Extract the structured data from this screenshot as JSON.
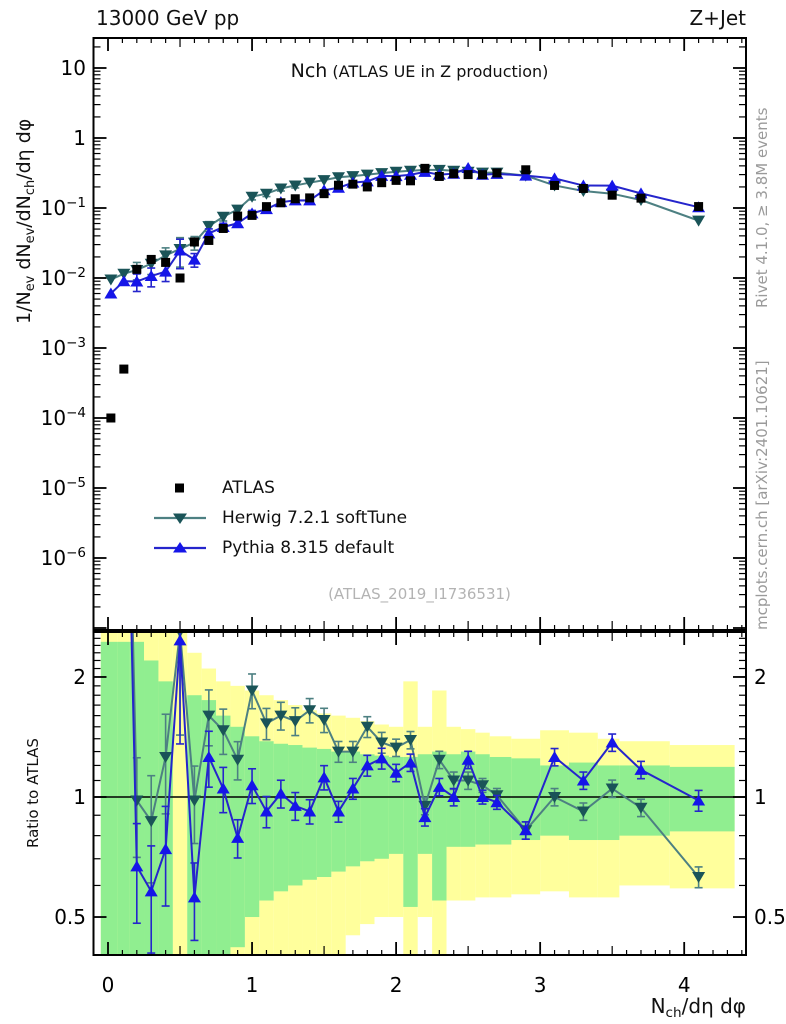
{
  "header": {
    "left": "13000 GeV pp",
    "right": "Z+Jet"
  },
  "title": {
    "main": "Nch",
    "paren": "(ATLAS UE in Z production)"
  },
  "watermark": "(ATLAS_2019_I1736531)",
  "side_notes": {
    "top": "Rivet 4.1.0, ≥ 3.8M events",
    "bottom": "mcplots.cern.ch [arXiv:2401.10621]"
  },
  "axes": {
    "ratio_label": "Ratio to ATLAS",
    "x_label_parts": [
      {
        "t": "N"
      },
      {
        "s": "ch"
      },
      {
        "t": "/dη dφ"
      }
    ],
    "y_label_parts": [
      {
        "t": "1/N"
      },
      {
        "s": "ev"
      },
      {
        "t": " dN"
      },
      {
        "s": "ev"
      },
      {
        "t": "/dN"
      },
      {
        "s": "ch"
      },
      {
        "t": "/dη dφ"
      }
    ],
    "x_tick_labels": [
      "0",
      "1",
      "2",
      "3",
      "4"
    ],
    "y_tick_exponents": [
      1,
      0,
      -1,
      -2,
      -3,
      -4,
      -5,
      -6
    ],
    "ratio_tick_labels": [
      "2",
      "1",
      "0.5"
    ],
    "ratio_tick_values": [
      2,
      1,
      0.5
    ]
  },
  "legend": [
    {
      "label": "ATLAS",
      "marker": "square",
      "line_color": "none",
      "marker_color": "#000000"
    },
    {
      "label": "Herwig 7.2.1 softTune",
      "marker": "triangle-down",
      "line_color": "#4d8082",
      "marker_color": "#1a5458"
    },
    {
      "label": "Pythia 8.315 default",
      "marker": "triangle-up",
      "line_color": "#2525cc",
      "marker_color": "#1515e8"
    }
  ],
  "colors": {
    "frame": "#000000",
    "atlas": "#000000",
    "herwig_line": "#4d8082",
    "herwig_marker": "#1a5458",
    "pythia_line": "#2525cc",
    "pythia_marker": "#1515e8",
    "band_yellow": "#ffff9c",
    "band_green": "#90ee90",
    "gray_text": "#9a9a9a"
  },
  "chart_data": {
    "type": "line",
    "title": "Nch (ATLAS UE in Z production)",
    "xlabel": "N_ch/deta dphi",
    "ylabel": "1/N_ev dN_ev/dN_ch/deta dphi",
    "ratio_ylabel": "Ratio to ATLAS",
    "main_axis": {
      "log_y": true,
      "ylim": [
        1e-07,
        27
      ],
      "labeled_decades": [
        1,
        0,
        -1,
        -2,
        -3,
        -4,
        -5,
        -6
      ]
    },
    "ratio_axis": {
      "log_y": true,
      "ylim": [
        0.4,
        2.59
      ],
      "ticks": [
        0.5,
        1,
        2
      ]
    },
    "xlim": [
      -0.104,
      4.43
    ],
    "xticks": [
      0,
      1,
      2,
      3,
      4
    ],
    "x": [
      0.02,
      0.11,
      0.2,
      0.3,
      0.4,
      0.5,
      0.6,
      0.7,
      0.8,
      0.9,
      1.0,
      1.1,
      1.2,
      1.3,
      1.4,
      1.5,
      1.6,
      1.7,
      1.8,
      1.9,
      2.0,
      2.1,
      2.2,
      2.3,
      2.4,
      2.5,
      2.6,
      2.7,
      2.9,
      3.1,
      3.3,
      3.5,
      3.7,
      4.1
    ],
    "bin_edges": [
      -0.05,
      0.065,
      0.15,
      0.25,
      0.35,
      0.45,
      0.55,
      0.65,
      0.75,
      0.85,
      0.95,
      1.05,
      1.15,
      1.25,
      1.35,
      1.45,
      1.55,
      1.65,
      1.75,
      1.85,
      1.95,
      2.05,
      2.15,
      2.25,
      2.35,
      2.45,
      2.55,
      2.65,
      2.8,
      3.0,
      3.2,
      3.4,
      3.55,
      3.9,
      4.35
    ],
    "series": [
      {
        "name": "ATLAS",
        "values": [
          0.0001,
          0.0005,
          0.0133,
          0.0184,
          0.0167,
          0.01,
          0.0327,
          0.0344,
          0.051,
          0.0766,
          0.0784,
          0.1046,
          0.1188,
          0.1355,
          0.1394,
          0.1603,
          0.2115,
          0.2192,
          0.2,
          0.2299,
          0.2481,
          0.2446,
          0.3684,
          0.2823,
          0.3091,
          0.3,
          0.2991,
          0.3168,
          0.3515,
          0.21,
          0.1902,
          0.1524,
          0.1383,
          0.1048
        ]
      },
      {
        "name": "Herwig 7.2.1 softTune",
        "ratio_to_atlas": [
          95,
          23,
          0.98,
          0.87,
          1.26,
          2.6,
          0.98,
          1.6,
          1.47,
          1.24,
          1.85,
          1.53,
          1.6,
          1.55,
          1.65,
          1.56,
          1.3,
          1.3,
          1.5,
          1.37,
          1.33,
          1.39,
          0.95,
          1.24,
          1.1,
          1.1,
          1.07,
          1.01,
          0.825,
          1.0,
          0.92,
          1.05,
          0.94,
          0.63
        ]
      },
      {
        "name": "Pythia 8.315 default",
        "ratio_to_atlas": [
          60,
          18,
          0.67,
          0.58,
          0.74,
          2.47,
          0.56,
          1.26,
          1.05,
          0.79,
          1.07,
          0.92,
          1.02,
          0.95,
          0.92,
          1.12,
          0.92,
          1.05,
          1.2,
          1.25,
          1.15,
          1.22,
          0.89,
          1.06,
          1.0,
          1.24,
          1.0,
          0.97,
          0.825,
          1.26,
          1.1,
          1.37,
          1.17,
          0.98
        ]
      }
    ],
    "mc_err_frac": [
      0,
      0,
      0.28,
      0.3,
      0.28,
      0.45,
      0.22,
      0.16,
      0.13,
      0.11,
      0.1,
      0.09,
      0.08,
      0.08,
      0.07,
      0.07,
      0.06,
      0.06,
      0.06,
      0.06,
      0.05,
      0.05,
      0.05,
      0.05,
      0.05,
      0.05,
      0.04,
      0.04,
      0.05,
      0.05,
      0.05,
      0.05,
      0.05,
      0.06
    ],
    "bands": {
      "legend_note": "yellow = data total uncertainty, green = data stat uncertainty (ratio panel)",
      "yellow": [
        [
          0.4,
          2.6
        ],
        [
          0.4,
          2.6
        ],
        [
          0.4,
          2.6
        ],
        [
          0.4,
          2.6
        ],
        [
          0.4,
          2.6
        ],
        [
          0.4,
          2.6
        ],
        [
          0.4,
          2.3
        ],
        [
          0.4,
          2.1
        ],
        [
          0.4,
          1.95
        ],
        [
          0.4,
          1.9
        ],
        [
          0.4,
          1.85
        ],
        [
          0.4,
          1.8
        ],
        [
          0.4,
          1.75
        ],
        [
          0.4,
          1.7
        ],
        [
          0.4,
          1.65
        ],
        [
          0.4,
          1.62
        ],
        [
          0.4,
          1.6
        ],
        [
          0.45,
          1.58
        ],
        [
          0.48,
          1.55
        ],
        [
          0.5,
          1.52
        ],
        [
          0.5,
          1.5
        ],
        [
          0.4,
          1.95
        ],
        [
          0.5,
          1.5
        ],
        [
          0.4,
          1.85
        ],
        [
          0.55,
          1.5
        ],
        [
          0.55,
          1.48
        ],
        [
          0.56,
          1.45
        ],
        [
          0.56,
          1.42
        ],
        [
          0.57,
          1.4
        ],
        [
          0.58,
          1.47
        ],
        [
          0.56,
          1.45
        ],
        [
          0.56,
          1.4
        ],
        [
          0.6,
          1.38
        ],
        [
          0.59,
          1.35
        ]
      ],
      "green": [
        [
          0.4,
          2.45
        ],
        [
          0.4,
          2.45
        ],
        [
          0.4,
          2.45
        ],
        [
          0.4,
          2.2
        ],
        [
          0.4,
          1.95
        ],
        [
          1,
          1
        ],
        [
          0.4,
          1.8
        ],
        [
          0.4,
          1.75
        ],
        [
          0.4,
          1.6
        ],
        [
          0.42,
          1.5
        ],
        [
          0.5,
          1.42
        ],
        [
          0.55,
          1.38
        ],
        [
          0.58,
          1.36
        ],
        [
          0.6,
          1.35
        ],
        [
          0.62,
          1.33
        ],
        [
          0.63,
          1.32
        ],
        [
          0.65,
          1.3
        ],
        [
          0.67,
          1.3
        ],
        [
          0.69,
          1.28
        ],
        [
          0.7,
          1.27
        ],
        [
          0.72,
          1.26
        ],
        [
          0.53,
          1.26
        ],
        [
          0.72,
          1.28
        ],
        [
          0.55,
          1.3
        ],
        [
          0.75,
          1.28
        ],
        [
          0.75,
          1.3
        ],
        [
          0.76,
          1.28
        ],
        [
          0.76,
          1.26
        ],
        [
          0.78,
          1.25
        ],
        [
          0.8,
          1.2
        ],
        [
          0.78,
          1.22
        ],
        [
          0.78,
          1.2
        ],
        [
          0.8,
          1.2
        ],
        [
          0.82,
          1.19
        ]
      ]
    }
  }
}
